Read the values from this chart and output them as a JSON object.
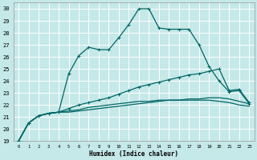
{
  "xlabel": "Humidex (Indice chaleur)",
  "xlim": [
    -0.5,
    23.5
  ],
  "ylim": [
    19,
    30.5
  ],
  "yticks": [
    19,
    20,
    21,
    22,
    23,
    24,
    25,
    26,
    27,
    28,
    29,
    30
  ],
  "xticks": [
    0,
    1,
    2,
    3,
    4,
    5,
    6,
    7,
    8,
    9,
    10,
    11,
    12,
    13,
    14,
    15,
    16,
    17,
    18,
    19,
    20,
    21,
    22,
    23
  ],
  "bg_color": "#c5e8e8",
  "grid_color": "#ffffff",
  "line_color": "#006666",
  "line1_x": [
    0,
    1,
    2,
    3,
    4,
    5,
    6,
    7,
    8,
    9,
    10,
    11,
    12,
    13,
    14,
    15,
    16,
    17,
    18,
    19,
    20,
    21,
    22,
    23
  ],
  "line1_y": [
    19.0,
    20.5,
    21.1,
    21.3,
    21.4,
    24.6,
    26.1,
    26.8,
    26.6,
    26.6,
    27.6,
    28.7,
    30.0,
    30.0,
    28.4,
    28.3,
    28.3,
    28.3,
    27.0,
    25.2,
    24.0,
    23.1,
    23.2,
    22.1
  ],
  "line2_x": [
    0,
    1,
    2,
    3,
    4,
    5,
    6,
    7,
    8,
    9,
    10,
    11,
    12,
    13,
    14,
    15,
    16,
    17,
    18,
    19,
    20,
    21,
    22,
    23
  ],
  "line2_y": [
    19.0,
    20.5,
    21.1,
    21.3,
    21.4,
    21.7,
    22.0,
    22.2,
    22.4,
    22.6,
    22.9,
    23.2,
    23.5,
    23.7,
    23.9,
    24.1,
    24.3,
    24.5,
    24.6,
    24.8,
    25.0,
    23.2,
    23.3,
    22.2
  ],
  "line3_x": [
    0,
    1,
    2,
    3,
    4,
    5,
    6,
    7,
    8,
    9,
    10,
    11,
    12,
    13,
    14,
    15,
    16,
    17,
    18,
    19,
    20,
    21,
    22,
    23
  ],
  "line3_y": [
    19.0,
    20.5,
    21.1,
    21.3,
    21.4,
    21.4,
    21.5,
    21.6,
    21.7,
    21.8,
    21.9,
    22.0,
    22.1,
    22.2,
    22.3,
    22.4,
    22.4,
    22.5,
    22.5,
    22.6,
    22.6,
    22.5,
    22.3,
    22.1
  ],
  "line4_x": [
    0,
    1,
    2,
    3,
    4,
    5,
    6,
    7,
    8,
    9,
    10,
    11,
    12,
    13,
    14,
    15,
    16,
    17,
    18,
    19,
    20,
    21,
    22,
    23
  ],
  "line4_y": [
    19.0,
    20.5,
    21.1,
    21.3,
    21.4,
    21.5,
    21.6,
    21.8,
    21.9,
    22.0,
    22.1,
    22.2,
    22.3,
    22.3,
    22.4,
    22.4,
    22.4,
    22.4,
    22.4,
    22.4,
    22.3,
    22.2,
    22.0,
    21.9
  ]
}
